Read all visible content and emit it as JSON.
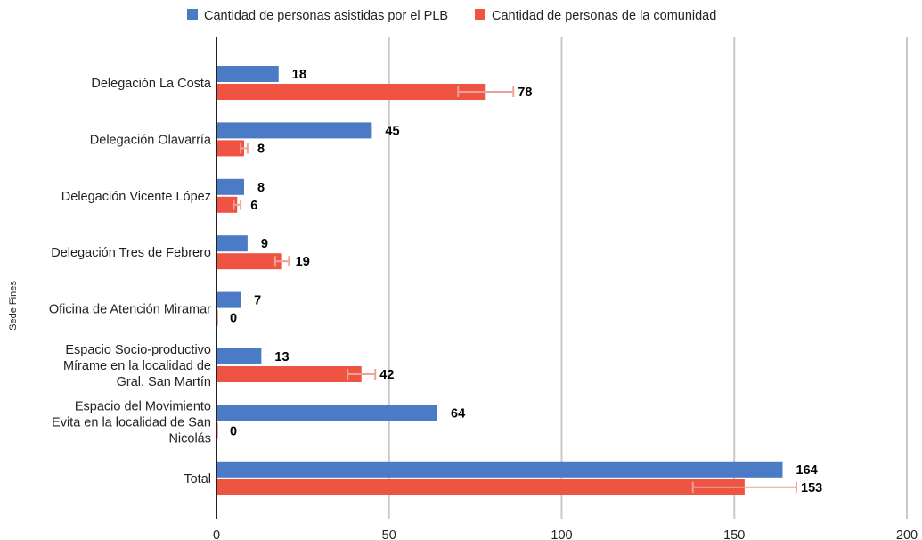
{
  "chart_data": {
    "type": "bar",
    "orientation": "horizontal",
    "ylabel": "Sede Fines",
    "xlim": [
      0,
      200
    ],
    "x_ticks": [
      "0",
      "50",
      "100",
      "150",
      "200"
    ],
    "grid": true,
    "legend_position": "top",
    "categories": [
      [
        "Delegación La Costa"
      ],
      [
        "Delegación Olavarría"
      ],
      [
        "Delegación Vicente López"
      ],
      [
        "Delegación Tres de Febrero"
      ],
      [
        "Oficina de Atención Miramar"
      ],
      [
        "Espacio Socio-productivo",
        "Mírame en la localidad de",
        "Gral. San Martín"
      ],
      [
        "Espacio del Movimiento",
        "Evita en la localidad de San",
        "Nicolás"
      ],
      [
        "Total"
      ]
    ],
    "series": [
      {
        "name": "Cantidad de personas asistidas por el PLB",
        "color": "#4a7bc4",
        "values": [
          18,
          45,
          8,
          9,
          7,
          13,
          64,
          164
        ]
      },
      {
        "name": "Cantidad de personas de la comunidad",
        "color": "#ef5341",
        "values": [
          78,
          8,
          6,
          19,
          0,
          42,
          0,
          153
        ],
        "error": [
          8,
          1,
          1,
          2,
          0,
          4,
          0,
          15
        ],
        "error_color": "#f0a095"
      }
    ]
  }
}
